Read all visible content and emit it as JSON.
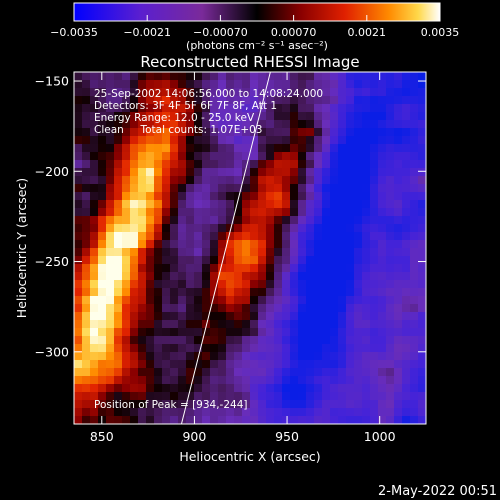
{
  "chart_data": {
    "type": "heatmap",
    "title": "Reconstructed RHESSI Image",
    "xlabel": "Heliocentric X (arcsec)",
    "ylabel": "Heliocentric Y (arcsec)",
    "xlim": [
      835,
      1025
    ],
    "ylim": [
      -340,
      -145
    ],
    "x_ticks": [
      850,
      900,
      950,
      1000
    ],
    "y_ticks": [
      -150,
      -200,
      -250,
      -300
    ],
    "x_tick_labels": [
      "850",
      "900",
      "950",
      "1000"
    ],
    "y_tick_labels": [
      "−150",
      "−200",
      "−250",
      "−300"
    ],
    "colorbar": {
      "min": -0.0035,
      "max": 0.0035,
      "ticks": [
        -0.0035,
        -0.0021,
        -0.0007,
        0.0007,
        0.0021,
        0.0035
      ],
      "tick_labels": [
        "−0.0035",
        "−0.0021",
        "−0.00070",
        "0.00070",
        "0.0021",
        "0.0035"
      ],
      "unit_label": "(photons cm⁻² s⁻¹ asec⁻²)",
      "colors": [
        "#0000ff",
        "#5a1fd0",
        "#8a2fa0",
        "#000000",
        "#7a0000",
        "#e02000",
        "#ff8000",
        "#ffd040",
        "#ffffff"
      ]
    },
    "annotations": {
      "time_range": "25-Sep-2002 14:06:56.000 to 14:08:24.000",
      "detectors": "Detectors: 3F 4F 5F 6F 7F 8F, Att 1",
      "energy": "Energy Range: 12.0 - 25.0 keV",
      "clean": "Clean     Total counts: 1.07E+03",
      "peak": "Position of Peak = [934,-244]"
    },
    "limb_line": [
      [
        893,
        -340
      ],
      [
        941,
        -145
      ]
    ],
    "grid": false
  },
  "footer": {
    "timestamp": "2-May-2022 00:51"
  }
}
